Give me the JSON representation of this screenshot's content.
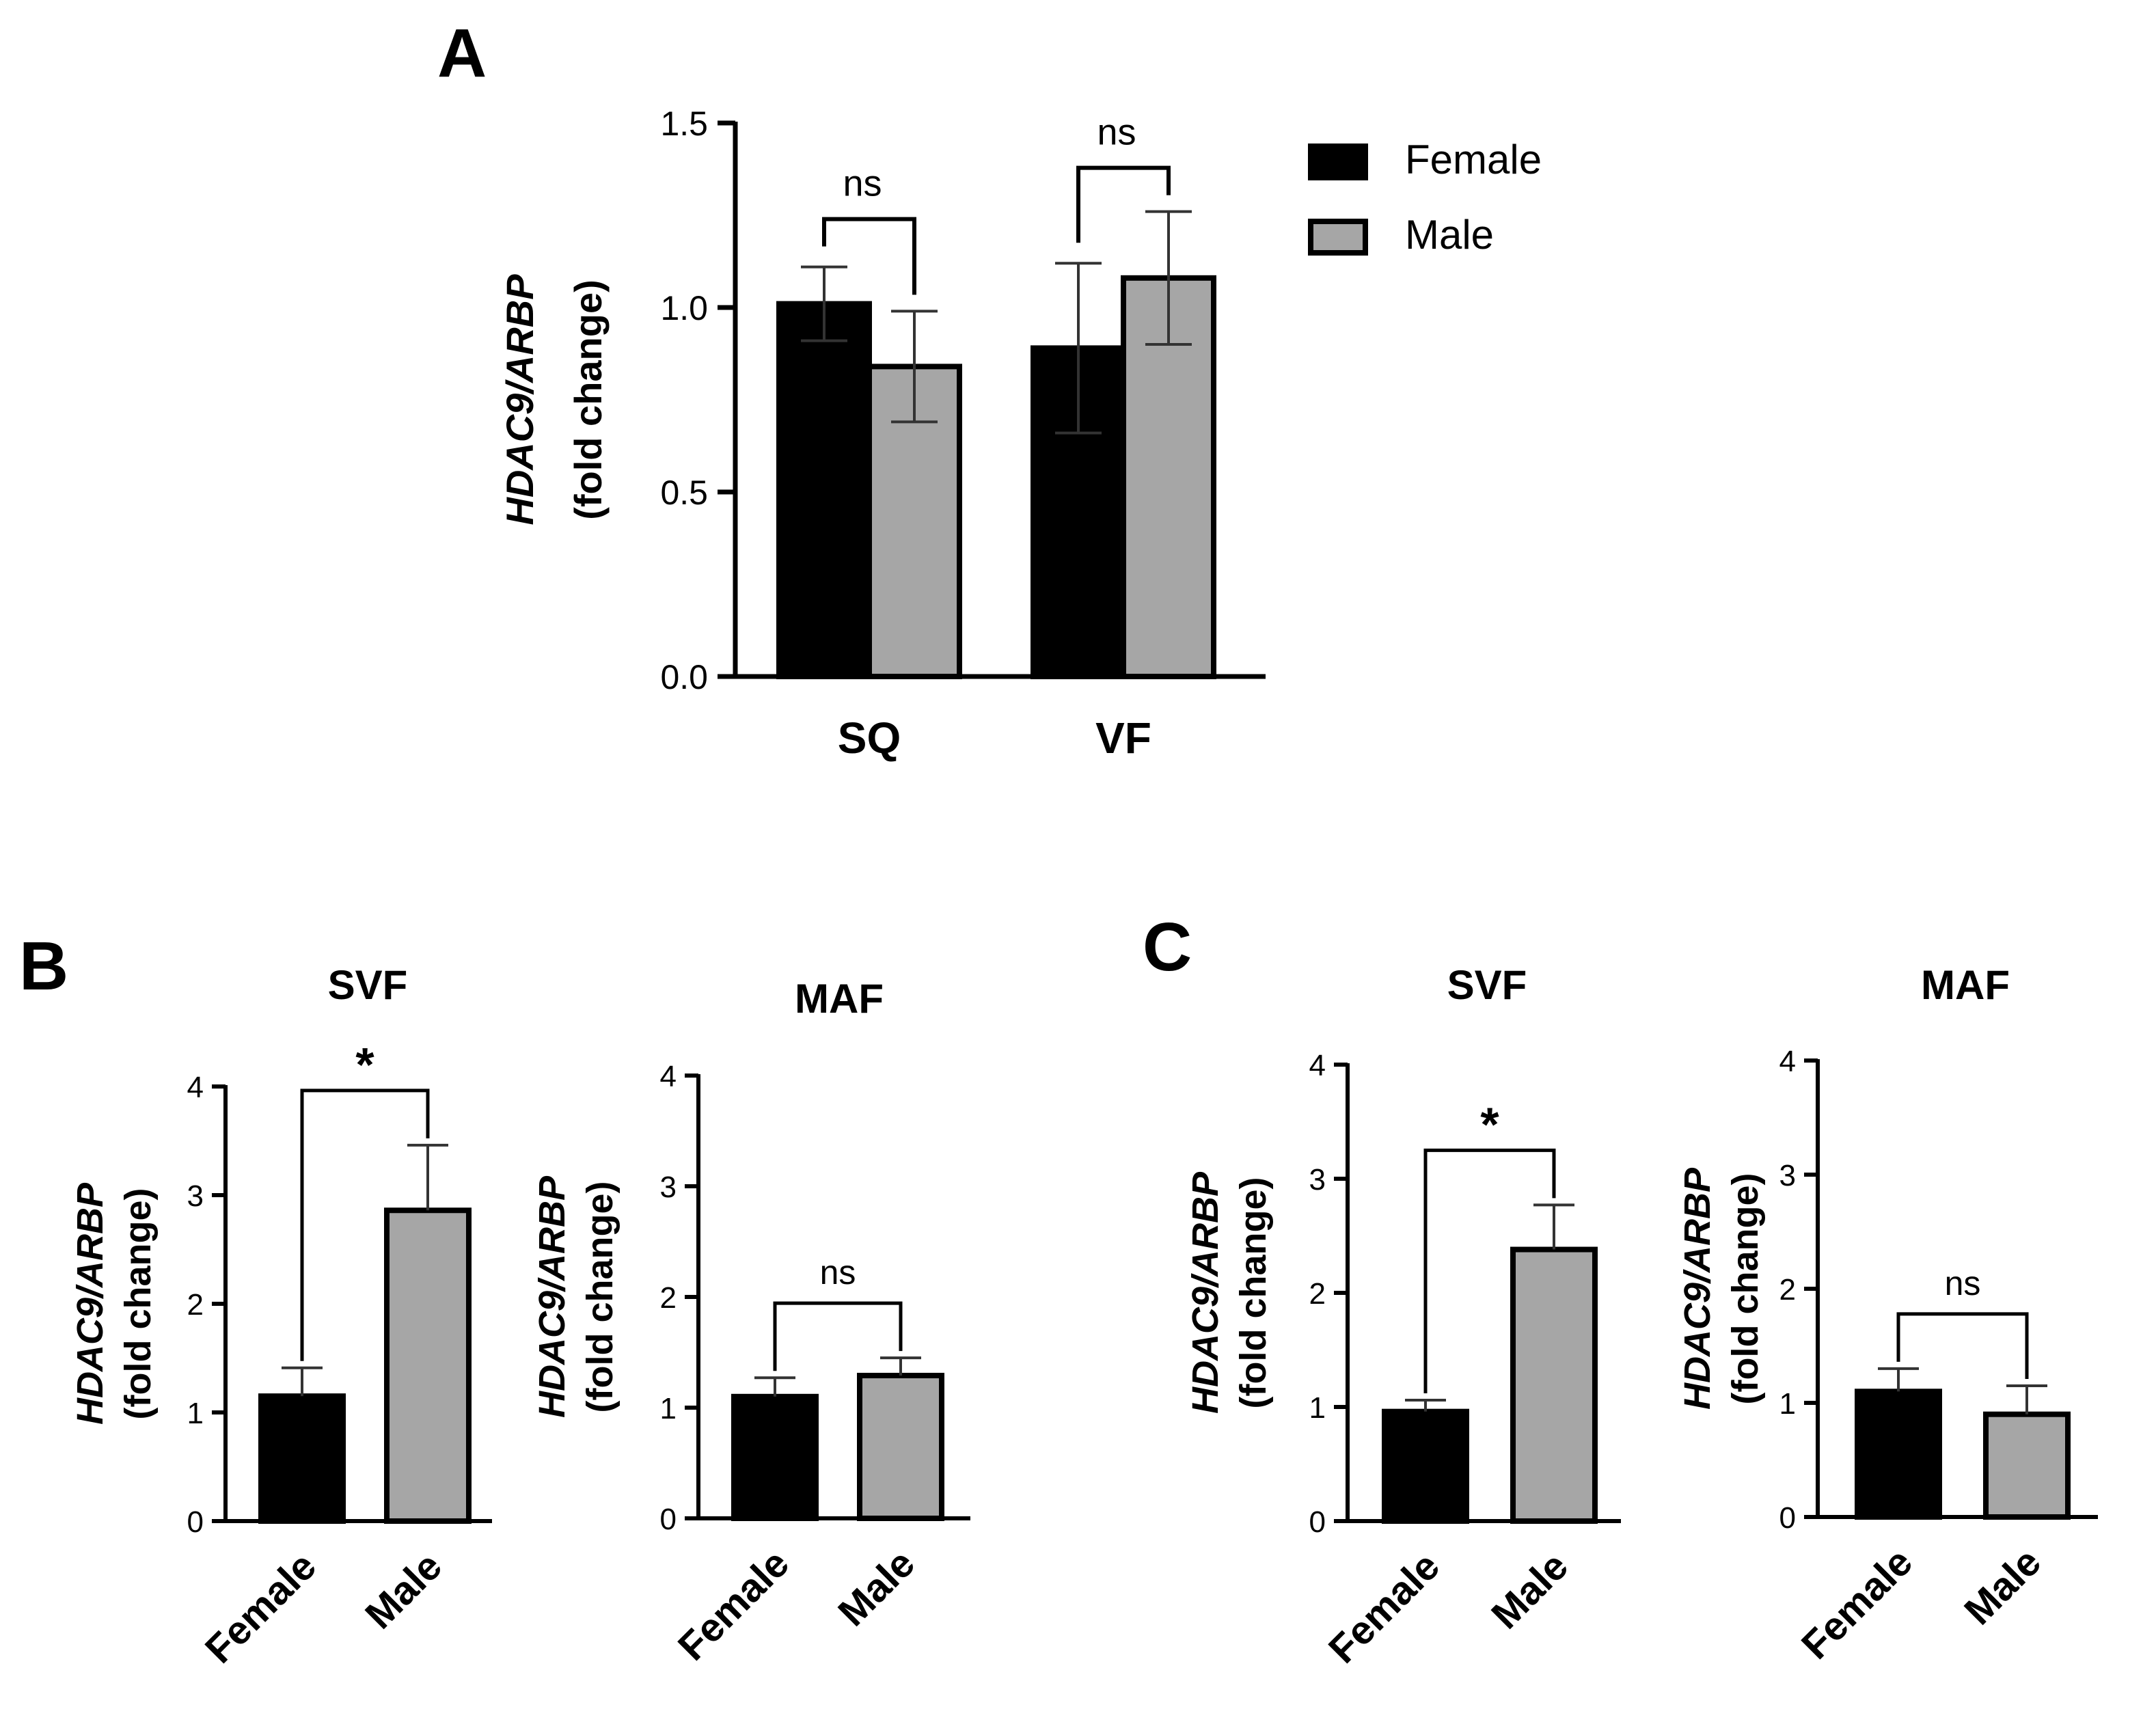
{
  "figure": {
    "colors": {
      "female": "#000000",
      "male": "#a6a6a6",
      "axis": "#000000",
      "error": "#333333"
    }
  },
  "chart_data": [
    {
      "panel": "A",
      "type": "bar",
      "title": "",
      "categories": [
        "SQ",
        "VF"
      ],
      "series": [
        {
          "name": "Female",
          "values": [
            1.01,
            0.89
          ],
          "errors": [
            0.1,
            0.23
          ]
        },
        {
          "name": "Male",
          "values": [
            0.84,
            1.08
          ],
          "errors": [
            0.15,
            0.18
          ]
        }
      ],
      "ylabel_gene": "HDAC9/ARBP",
      "ylabel_unit": "(fold change)",
      "xlabel": "",
      "ylim": [
        0,
        1.5
      ],
      "yticks": [
        "0.0",
        "0.5",
        "1.0",
        "1.5"
      ],
      "legend": [
        "Female",
        "Male"
      ],
      "legend_position": "top-right",
      "significance": [
        "ns",
        "ns"
      ]
    },
    {
      "panel": "B",
      "type": "bar",
      "title": "SVF",
      "categories": [
        "Female",
        "Male"
      ],
      "values": [
        1.15,
        2.86
      ],
      "errors": [
        0.26,
        0.6
      ],
      "ylabel_gene": "HDAC9/ARBP",
      "ylabel_unit": "(fold change)",
      "ylim": [
        0,
        4
      ],
      "yticks": [
        "0",
        "1",
        "2",
        "3",
        "4"
      ],
      "significance": "*"
    },
    {
      "panel": "B",
      "type": "bar",
      "title": "MAF",
      "categories": [
        "Female",
        "Male"
      ],
      "values": [
        1.1,
        1.29
      ],
      "errors": [
        0.17,
        0.16
      ],
      "ylabel_gene": "HDAC9/ARBP",
      "ylabel_unit": "(fold change)",
      "ylim": [
        0,
        4
      ],
      "yticks": [
        "0",
        "1",
        "2",
        "3",
        "4"
      ],
      "significance": "ns"
    },
    {
      "panel": "C",
      "type": "bar",
      "title": "SVF",
      "categories": [
        "Female",
        "Male"
      ],
      "values": [
        0.96,
        2.38
      ],
      "errors": [
        0.1,
        0.39
      ],
      "ylabel_gene": "HDAC9/ARBP",
      "ylabel_unit": "(fold change)",
      "ylim": [
        0,
        4
      ],
      "yticks": [
        "0",
        "1",
        "2",
        "3",
        "4"
      ],
      "significance": "*"
    },
    {
      "panel": "C",
      "type": "bar",
      "title": "MAF",
      "categories": [
        "Female",
        "Male"
      ],
      "values": [
        1.1,
        0.9
      ],
      "errors": [
        0.2,
        0.25
      ],
      "ylabel_gene": "HDAC9/ARBP",
      "ylabel_unit": "(fold change)",
      "ylim": [
        0,
        4
      ],
      "yticks": [
        "0",
        "1",
        "2",
        "3",
        "4"
      ],
      "significance": "ns"
    }
  ]
}
